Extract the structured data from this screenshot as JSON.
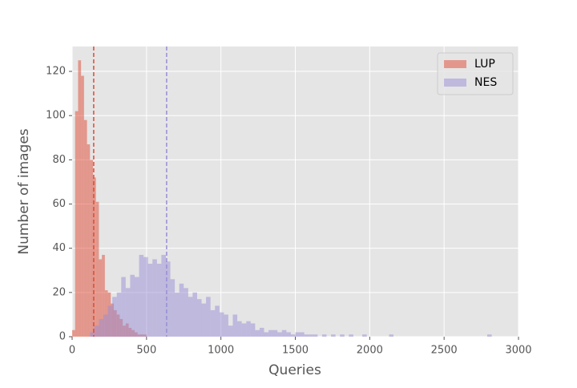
{
  "chart_data": {
    "type": "histogram",
    "x_label": "Queries",
    "y_label": "Number of images",
    "xlim": [
      0,
      3000
    ],
    "ylim": [
      0,
      131.25
    ],
    "xticks": [
      0,
      500,
      1000,
      1500,
      2000,
      2500,
      3000
    ],
    "yticks": [
      0,
      20,
      40,
      60,
      80,
      100,
      120
    ],
    "grid": true,
    "legend": "upper right",
    "series": [
      {
        "name": "LUP",
        "color": "#E24A33",
        "alpha": 0.5,
        "bins": [
          0,
          20,
          40,
          60,
          80,
          100,
          120,
          140,
          160,
          180,
          200,
          220,
          240,
          260,
          280,
          300,
          320,
          340,
          360,
          380,
          400,
          420,
          440,
          460,
          480,
          500
        ],
        "values": [
          3,
          102,
          125,
          118,
          98,
          87,
          80,
          72,
          61,
          35,
          37,
          21,
          20,
          15,
          12,
          10,
          8,
          5,
          6,
          4,
          3,
          2,
          1,
          1,
          1
        ],
        "mean": 145
      },
      {
        "name": "NES",
        "color": "#988ED5",
        "alpha": 0.5,
        "bins": [
          0,
          30,
          60,
          90,
          120,
          150,
          180,
          210,
          240,
          270,
          300,
          330,
          360,
          390,
          420,
          450,
          480,
          510,
          540,
          570,
          600,
          630,
          660,
          690,
          720,
          750,
          780,
          810,
          840,
          870,
          900,
          930,
          960,
          990,
          1020,
          1050,
          1080,
          1110,
          1140,
          1170,
          1200,
          1230,
          1260,
          1290,
          1320,
          1350,
          1380,
          1410,
          1440,
          1470,
          1500,
          1530,
          1560,
          1590,
          1620,
          1650,
          1680,
          1710,
          1740,
          1770,
          1800,
          1830,
          1860,
          1890,
          1920,
          1950,
          1980,
          2010,
          2040,
          2070,
          2100,
          2130,
          2160,
          2190,
          2220,
          2250,
          2280,
          2310,
          2340,
          2370,
          2400,
          2430,
          2460,
          2490,
          2520,
          2550,
          2580,
          2610,
          2640,
          2670,
          2700,
          2730,
          2760,
          2790,
          2820,
          2850,
          2880,
          2910,
          2940,
          2970,
          3000
        ],
        "values": [
          0,
          0,
          0,
          0,
          2,
          5,
          8,
          10,
          14,
          18,
          20,
          27,
          22,
          28,
          27,
          37,
          36,
          33,
          35,
          33,
          37,
          34,
          26,
          20,
          24,
          22,
          18,
          20,
          17,
          15,
          18,
          12,
          14,
          11,
          10,
          5,
          10,
          7,
          6,
          7,
          6,
          3,
          4,
          2,
          3,
          3,
          2,
          3,
          2,
          1,
          2,
          2,
          1,
          1,
          1,
          0,
          1,
          0,
          1,
          0,
          1,
          0,
          1,
          0,
          0,
          1,
          0,
          0,
          0,
          0,
          0,
          1,
          0,
          0,
          0,
          0,
          0,
          0,
          0,
          0,
          0,
          0,
          0,
          0,
          0,
          0,
          0,
          0,
          0,
          0,
          0,
          0,
          0,
          1,
          0,
          0,
          0,
          0,
          0,
          0
        ],
        "mean": 635
      }
    ]
  }
}
